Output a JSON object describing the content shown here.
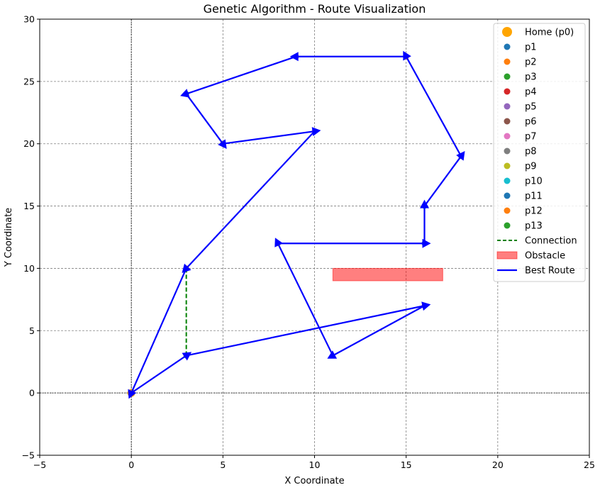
{
  "chart_data": {
    "type": "scatter",
    "title": "Genetic Algorithm - Route Visualization",
    "xlabel": "X Coordinate",
    "ylabel": "Y Coordinate",
    "xlim": [
      -5,
      25
    ],
    "ylim": [
      -5,
      30
    ],
    "xticks": [
      -5,
      0,
      5,
      10,
      15,
      20,
      25
    ],
    "yticks": [
      -5,
      0,
      5,
      10,
      15,
      20,
      25,
      30
    ],
    "grid": true,
    "legend_position": "top-right",
    "home": {
      "name": "Home (p0)",
      "x": 0,
      "y": 0,
      "color": "#ffa500"
    },
    "points": [
      {
        "name": "p1",
        "x": 18,
        "y": 19,
        "color": "#1f77b4"
      },
      {
        "name": "p2",
        "x": 15,
        "y": 27,
        "color": "#ff7f0e"
      },
      {
        "name": "p3",
        "x": 3,
        "y": 24,
        "color": "#2ca02c"
      },
      {
        "name": "p4",
        "x": 16,
        "y": 7,
        "color": "#d62728"
      },
      {
        "name": "p5",
        "x": 9,
        "y": 27,
        "color": "#9467bd"
      },
      {
        "name": "p6",
        "x": 5,
        "y": 20,
        "color": "#8c564b"
      },
      {
        "name": "p7",
        "x": 10,
        "y": 21,
        "color": "#e377c2"
      },
      {
        "name": "p8",
        "x": 18,
        "y": 19,
        "color": "#7f7f7f"
      },
      {
        "name": "p9",
        "x": 8,
        "y": 12,
        "color": "#bcbd22"
      },
      {
        "name": "p10",
        "x": 16,
        "y": 15,
        "color": "#17becf"
      },
      {
        "name": "p11",
        "x": 16,
        "y": 12,
        "color": "#1f77b4"
      },
      {
        "name": "p12",
        "x": 3,
        "y": 10,
        "color": "#ff7f0e"
      },
      {
        "name": "p13",
        "x": 3,
        "y": 3,
        "color": "#2ca02c"
      }
    ],
    "connection": {
      "name": "Connection",
      "x": [
        3,
        3
      ],
      "y": [
        3,
        10
      ],
      "color": "#008000",
      "style": "dashed"
    },
    "obstacle": {
      "name": "Obstacle",
      "x_range": [
        11,
        17
      ],
      "y_range": [
        9,
        10
      ],
      "color": "#ff0000"
    },
    "best_route": {
      "name": "Best Route",
      "color": "#0000ff",
      "x": [
        0,
        3,
        16,
        11,
        8,
        16,
        16,
        18,
        15,
        9,
        3,
        5,
        10,
        3,
        0
      ],
      "y": [
        0,
        3,
        7,
        3,
        12,
        12,
        15,
        19,
        27,
        27,
        24,
        20,
        21,
        10,
        0
      ]
    }
  }
}
